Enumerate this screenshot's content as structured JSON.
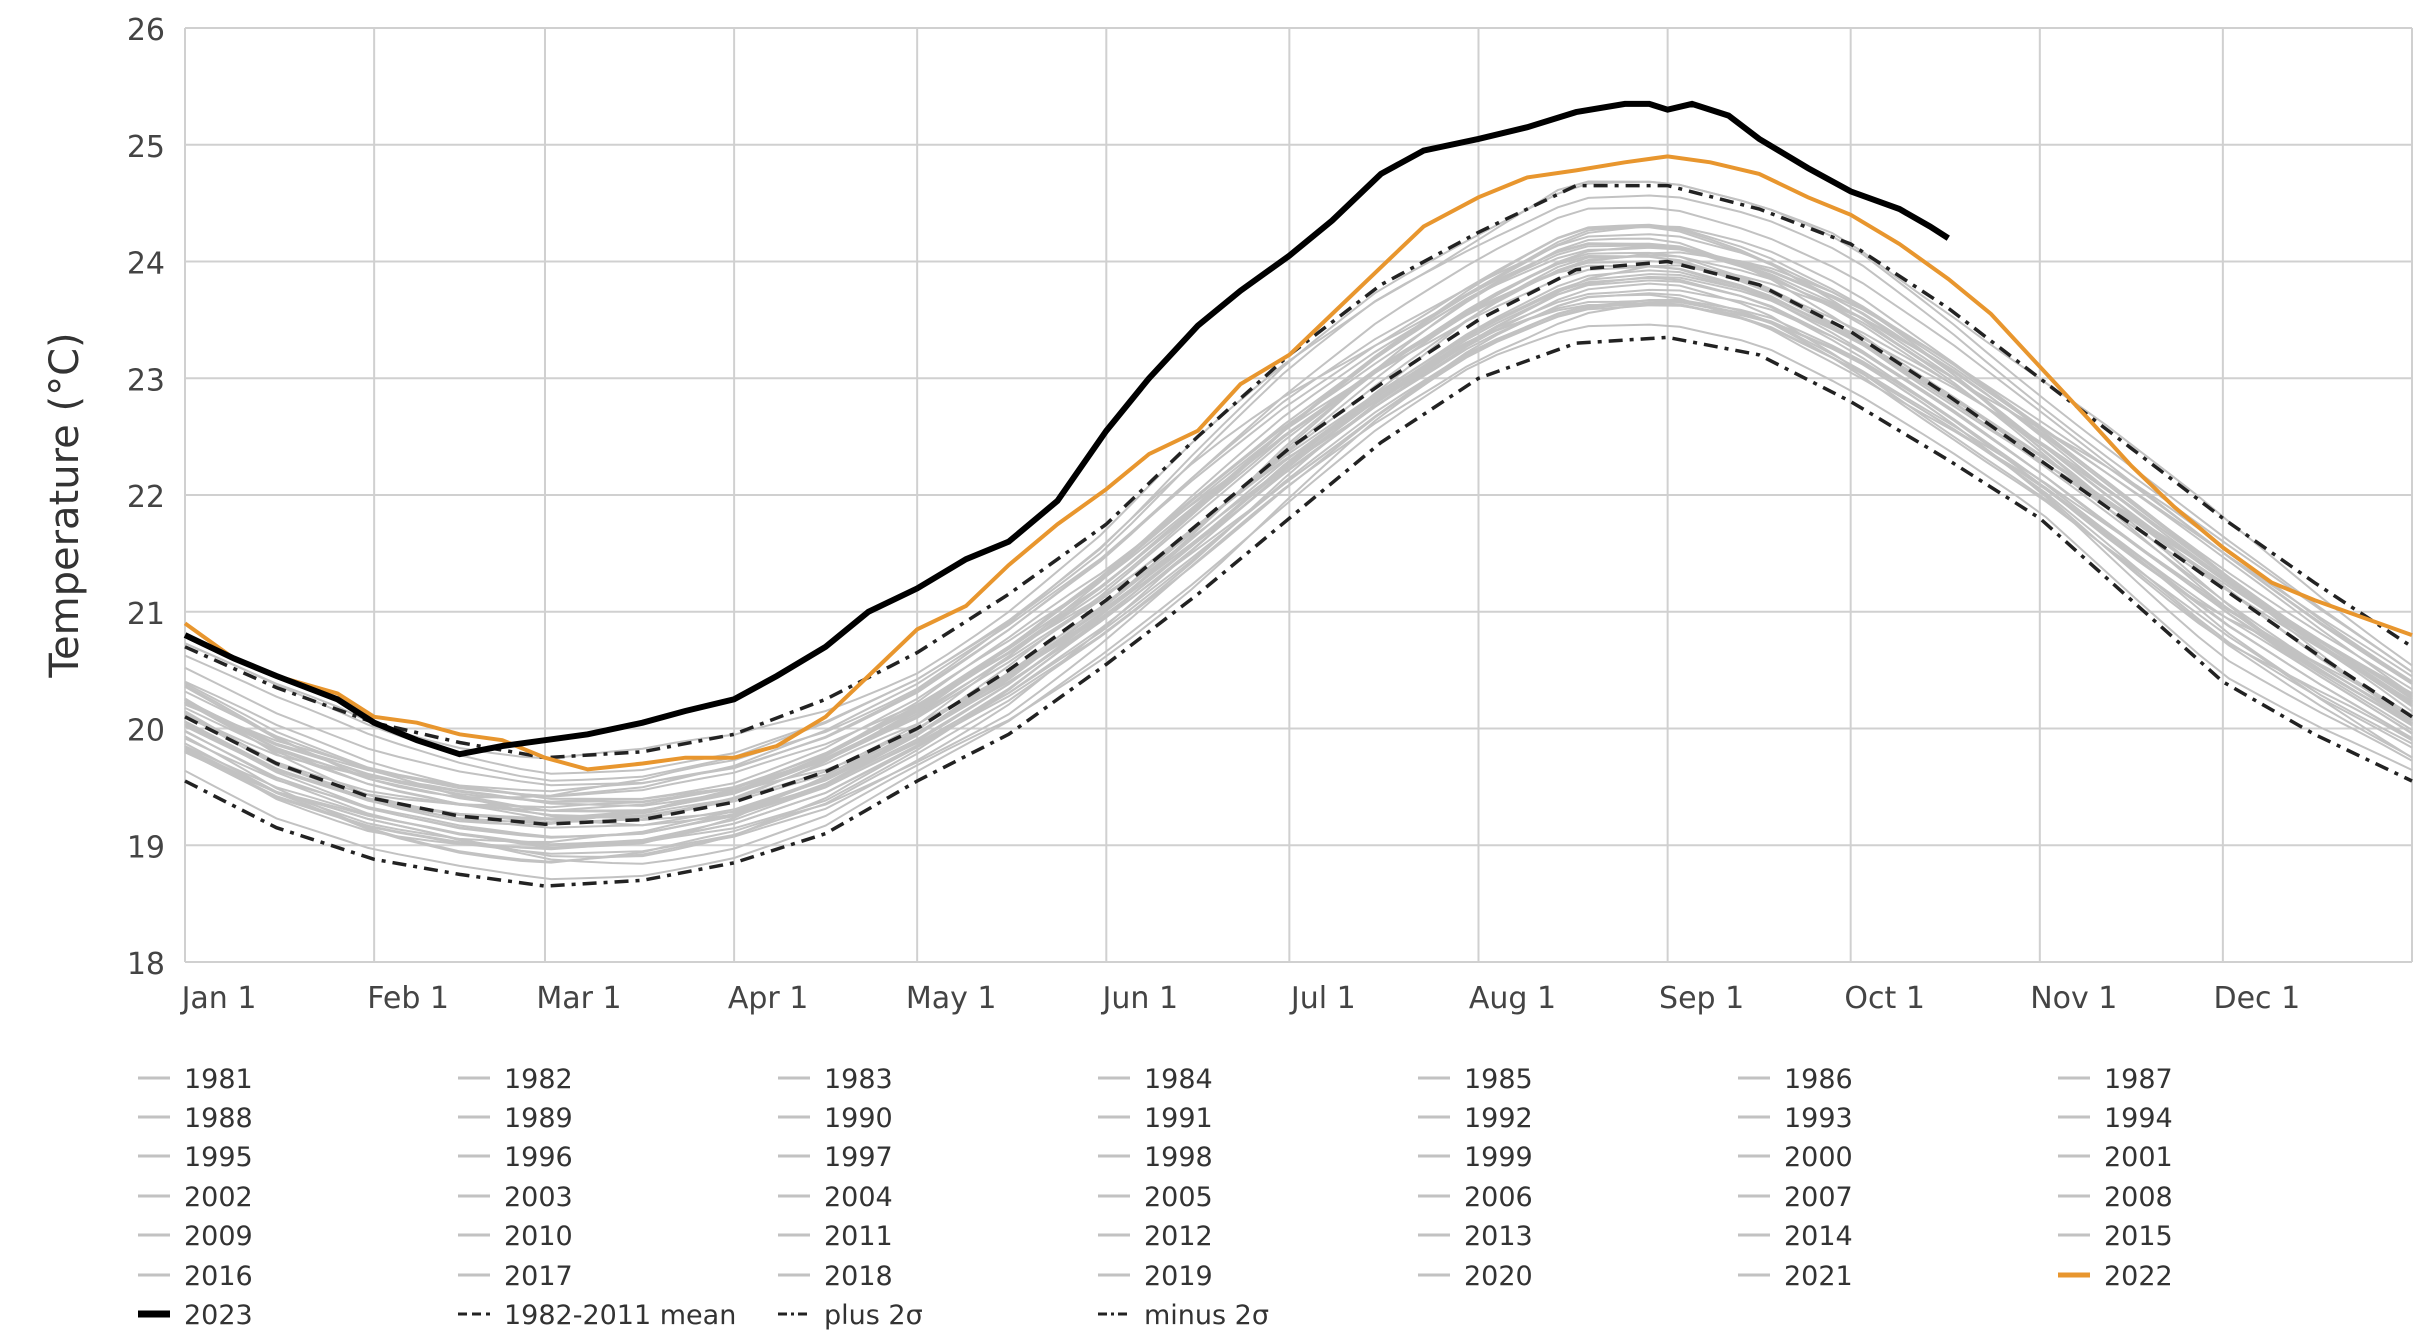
{
  "chart_data": {
    "type": "line",
    "ylabel": "Temperature (°C)",
    "ylim": [
      18,
      26
    ],
    "yticks": [
      "18",
      "19",
      "20",
      "21",
      "22",
      "23",
      "24",
      "25",
      "26"
    ],
    "xticks": [
      {
        "label": "Jan 1",
        "day": 0
      },
      {
        "label": "Feb 1",
        "day": 31
      },
      {
        "label": "Mar 1",
        "day": 59
      },
      {
        "label": "Apr 1",
        "day": 90
      },
      {
        "label": "May 1",
        "day": 120
      },
      {
        "label": "Jun 1",
        "day": 151
      },
      {
        "label": "Jul 1",
        "day": 181
      },
      {
        "label": "Aug 1",
        "day": 212
      },
      {
        "label": "Sep 1",
        "day": 243
      },
      {
        "label": "Oct 1",
        "day": 273
      },
      {
        "label": "Nov 1",
        "day": 304
      },
      {
        "label": "Dec 1",
        "day": 334
      }
    ],
    "xlim": [
      0,
      365
    ],
    "grid": true,
    "legend_position": "bottom",
    "colors": {
      "historical": "#c2c2c2",
      "year_2022": "#e8962e",
      "year_2023": "#000000",
      "reference": "#222222",
      "grid": "#d0d0d0"
    },
    "historical_years": [
      "1981",
      "1982",
      "1983",
      "1984",
      "1985",
      "1986",
      "1987",
      "1988",
      "1989",
      "1990",
      "1991",
      "1992",
      "1993",
      "1994",
      "1995",
      "1996",
      "1997",
      "1998",
      "1999",
      "2000",
      "2001",
      "2002",
      "2003",
      "2004",
      "2005",
      "2006",
      "2007",
      "2008",
      "2009",
      "2010",
      "2011",
      "2012",
      "2013",
      "2014",
      "2015",
      "2016",
      "2017",
      "2018",
      "2019",
      "2020",
      "2021"
    ],
    "series": [
      {
        "name": "1982-2011 mean",
        "style": "dashed",
        "x": [
          0,
          15,
          31,
          45,
          59,
          75,
          90,
          105,
          120,
          135,
          151,
          166,
          181,
          196,
          212,
          228,
          243,
          258,
          273,
          289,
          304,
          319,
          334,
          349,
          365
        ],
        "y": [
          20.1,
          19.7,
          19.4,
          19.25,
          19.18,
          19.22,
          19.37,
          19.63,
          20.0,
          20.5,
          21.1,
          21.75,
          22.4,
          22.95,
          23.5,
          23.93,
          24.0,
          23.8,
          23.4,
          22.85,
          22.3,
          21.75,
          21.2,
          20.65,
          20.1
        ]
      },
      {
        "name": "plus 2σ",
        "style": "dashdot",
        "x": [
          0,
          15,
          31,
          45,
          59,
          75,
          90,
          105,
          120,
          135,
          151,
          166,
          181,
          196,
          212,
          228,
          243,
          258,
          273,
          289,
          304,
          319,
          334,
          349,
          365
        ],
        "y": [
          20.7,
          20.35,
          20.05,
          19.88,
          19.75,
          19.8,
          19.95,
          20.25,
          20.65,
          21.15,
          21.75,
          22.5,
          23.2,
          23.8,
          24.25,
          24.65,
          24.65,
          24.45,
          24.15,
          23.6,
          23.0,
          22.4,
          21.8,
          21.25,
          20.7
        ]
      },
      {
        "name": "minus 2σ",
        "style": "dashdot",
        "x": [
          0,
          15,
          31,
          45,
          59,
          75,
          90,
          105,
          120,
          135,
          151,
          166,
          181,
          196,
          212,
          228,
          243,
          258,
          273,
          289,
          304,
          319,
          334,
          349,
          365
        ],
        "y": [
          19.55,
          19.15,
          18.88,
          18.75,
          18.65,
          18.7,
          18.85,
          19.1,
          19.55,
          19.95,
          20.55,
          21.15,
          21.8,
          22.45,
          23.0,
          23.3,
          23.35,
          23.2,
          22.8,
          22.3,
          21.8,
          21.1,
          20.4,
          19.95,
          19.55
        ]
      },
      {
        "name": "2022",
        "style": "solid",
        "x": [
          0,
          8,
          15,
          25,
          31,
          38,
          45,
          52,
          59,
          66,
          75,
          82,
          90,
          97,
          105,
          112,
          120,
          128,
          135,
          143,
          151,
          158,
          166,
          173,
          181,
          188,
          196,
          203,
          212,
          220,
          228,
          236,
          243,
          250,
          258,
          266,
          273,
          281,
          289,
          296,
          304,
          312,
          319,
          326,
          334,
          342,
          349,
          357,
          365
        ],
        "y": [
          20.9,
          20.6,
          20.45,
          20.3,
          20.1,
          20.05,
          19.95,
          19.9,
          19.75,
          19.65,
          19.7,
          19.75,
          19.75,
          19.85,
          20.1,
          20.45,
          20.85,
          21.05,
          21.4,
          21.75,
          22.05,
          22.35,
          22.55,
          22.95,
          23.2,
          23.55,
          23.95,
          24.3,
          24.55,
          24.72,
          24.78,
          24.85,
          24.9,
          24.85,
          24.75,
          24.55,
          24.4,
          24.15,
          23.85,
          23.55,
          23.1,
          22.65,
          22.25,
          21.9,
          21.55,
          21.25,
          21.1,
          20.95,
          20.8
        ]
      },
      {
        "name": "2023",
        "style": "solid-bold",
        "x": [
          0,
          8,
          15,
          25,
          31,
          38,
          45,
          52,
          59,
          66,
          75,
          82,
          90,
          97,
          105,
          112,
          120,
          128,
          135,
          143,
          151,
          158,
          166,
          173,
          181,
          188,
          196,
          203,
          212,
          220,
          228,
          236,
          240,
          243,
          247,
          253,
          258,
          266,
          273,
          281,
          286,
          289
        ],
        "y": [
          20.8,
          20.6,
          20.45,
          20.25,
          20.05,
          19.9,
          19.78,
          19.85,
          19.9,
          19.95,
          20.05,
          20.15,
          20.25,
          20.45,
          20.7,
          21.0,
          21.2,
          21.45,
          21.6,
          21.95,
          22.55,
          23.0,
          23.45,
          23.75,
          24.05,
          24.35,
          24.75,
          24.95,
          25.05,
          25.15,
          25.28,
          25.35,
          25.35,
          25.3,
          25.35,
          25.25,
          25.05,
          24.8,
          24.6,
          24.45,
          24.3,
          24.2
        ]
      }
    ]
  },
  "legend": {
    "historical": [
      "1981",
      "1982",
      "1983",
      "1984",
      "1985",
      "1986",
      "1987",
      "1988",
      "1989",
      "1990",
      "1991",
      "1992",
      "1993",
      "1994",
      "1995",
      "1996",
      "1997",
      "1998",
      "1999",
      "2000",
      "2001",
      "2002",
      "2003",
      "2004",
      "2005",
      "2006",
      "2007",
      "2008",
      "2009",
      "2010",
      "2011",
      "2012",
      "2013",
      "2014",
      "2015",
      "2016",
      "2017",
      "2018",
      "2019",
      "2020",
      "2021"
    ],
    "y2022": "2022",
    "y2023": "2023",
    "mean": "1982-2011 mean",
    "plus": "plus 2σ",
    "minus": "minus 2σ"
  }
}
